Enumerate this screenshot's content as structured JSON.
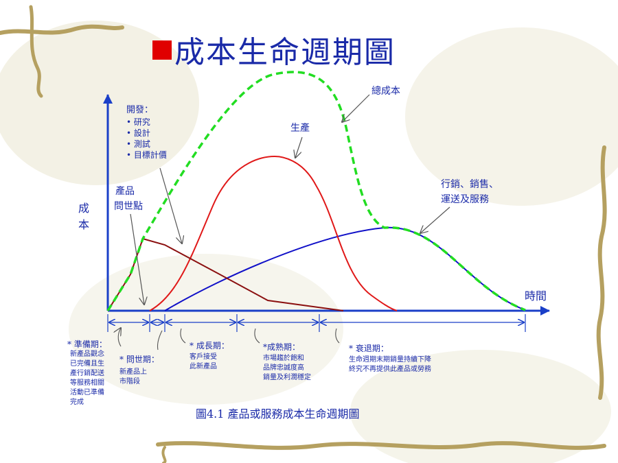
{
  "title": "成本生命週期圖",
  "axes": {
    "y_label_line1": "成",
    "y_label_line2": "本",
    "x_label": "時間"
  },
  "annotations": {
    "development_heading": "開發：",
    "development_items": [
      "研究",
      "設計",
      "測試",
      "目標計價"
    ],
    "launch_line1": "產品",
    "launch_line2": "問世點",
    "production": "生產",
    "total_cost": "總成本",
    "marketing_line1": "行銷、銷售、",
    "marketing_line2": "運送及服務"
  },
  "phases": [
    {
      "head": "* 準備期：",
      "desc": [
        "新產品觀念",
        "已完備且生",
        "產行銷配送",
        "等服務相關",
        "活動已準備",
        "完成"
      ]
    },
    {
      "head": "* 問世期：",
      "desc": [
        "新產品上",
        "市階段"
      ]
    },
    {
      "head": "* 成長期：",
      "desc": [
        "客戶接受",
        "此新產品"
      ]
    },
    {
      "head": "*成熟期：",
      "desc": [
        "市場趨於飽和",
        "品牌忠誠度高",
        "銷量及利潤穩定"
      ]
    },
    {
      "head": "* 衰退期：",
      "desc": [
        "生命週期末期銷量持續下降",
        "終究不再提供此產品或勞務"
      ]
    }
  ],
  "caption": "圖4.1 產品或服務成本生命週期圖",
  "colors": {
    "text": "#1a2aa8",
    "axis": "#1a3fc8",
    "total_cost_curve": "#22dd22",
    "production_curve": "#e01818",
    "development_curve": "#8b1010",
    "marketing_curve": "#1010c8",
    "title_square": "#e00000"
  }
}
